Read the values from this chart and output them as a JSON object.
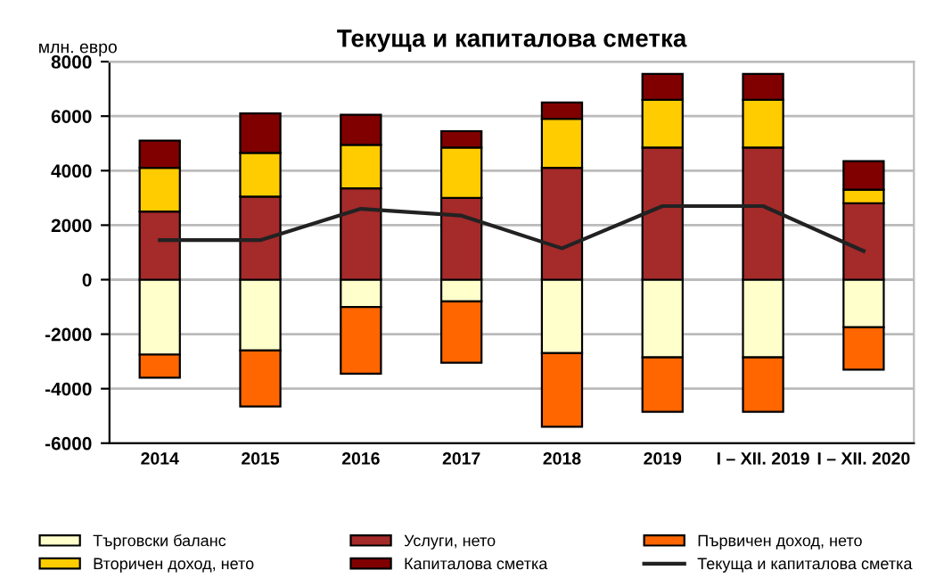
{
  "chart_data": {
    "type": "bar",
    "title": "Текуща и капиталова сметка",
    "ylabel": "млн. евро",
    "categories": [
      "2014",
      "2015",
      "2016",
      "2017",
      "2018",
      "2019",
      "I – XII. 2019",
      "I – XII. 2020"
    ],
    "stacked": true,
    "series": [
      {
        "name": "Търговски баланс",
        "color": "#ffffcc",
        "values": [
          -2750,
          -2600,
          -1000,
          -800,
          -2700,
          -2850,
          -2850,
          -1750
        ]
      },
      {
        "name": "Услуги, нето",
        "color": "#a52a2a",
        "values": [
          2500,
          3050,
          3350,
          3000,
          4100,
          4850,
          4850,
          2800
        ]
      },
      {
        "name": "Първичен доход, нето",
        "color": "#ff6600",
        "values": [
          -850,
          -2050,
          -2450,
          -2250,
          -2700,
          -2000,
          -2000,
          -1550
        ]
      },
      {
        "name": "Вторичен доход, нето",
        "color": "#ffcc00",
        "values": [
          1600,
          1600,
          1600,
          1850,
          1800,
          1750,
          1750,
          500
        ]
      },
      {
        "name": "Капиталова сметка",
        "color": "#800000",
        "values": [
          1000,
          1450,
          1100,
          600,
          600,
          950,
          950,
          1050
        ]
      },
      {
        "name": "Текуща и капиталова сметка",
        "type": "line",
        "color": "#222222",
        "values": [
          1450,
          1450,
          2600,
          2350,
          1150,
          2700,
          2700,
          1050
        ]
      }
    ],
    "ylim": [
      -6000,
      8000
    ],
    "yticks": [
      -6000,
      -4000,
      -2000,
      0,
      2000,
      4000,
      6000,
      8000
    ],
    "grid": "y",
    "legend": "bottom",
    "marker": "none",
    "line_style": "solid"
  }
}
